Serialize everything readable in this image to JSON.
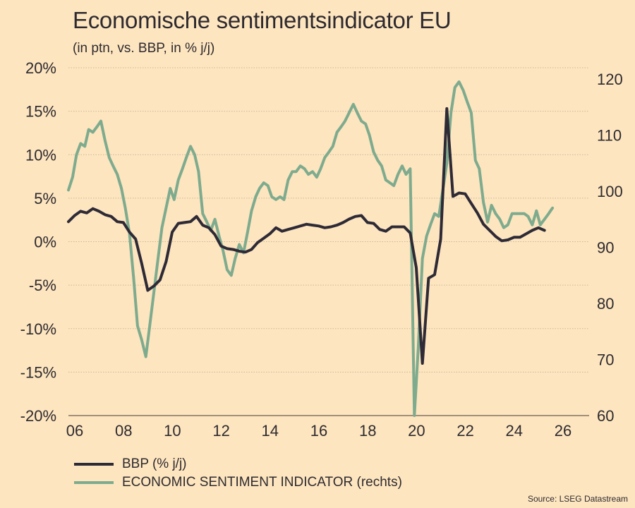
{
  "header": {
    "title": "Economische sentimentsindicator EU",
    "subtitle": "(in ptn, vs. BBP, in % j/j)"
  },
  "legend": {
    "items": [
      {
        "label": "BBP (% j/j)",
        "color": "#2e2a36"
      },
      {
        "label": "ECONOMIC SENTIMENT INDICATOR (rechts)",
        "color": "#7eab8e"
      }
    ]
  },
  "source": "Source: LSEG Datastream",
  "chart_data": {
    "type": "line",
    "title": "Economische sentimentsindicator EU",
    "subtitle": "(in ptn, vs. BBP, in % j/j)",
    "xlabel": "",
    "ylabel_left": "",
    "ylabel_right": "",
    "x_ticks": [
      "06",
      "08",
      "10",
      "12",
      "14",
      "16",
      "18",
      "20",
      "22",
      "24",
      "26"
    ],
    "x_tick_years": [
      2006,
      2008,
      2010,
      2012,
      2014,
      2016,
      2018,
      2020,
      2022,
      2024,
      2026
    ],
    "xlim": [
      2006,
      2027.3
    ],
    "y_left_ticks": [
      "20%",
      "15%",
      "10%",
      "5%",
      "0%",
      "-5%",
      "-10%",
      "-15%",
      "-20%"
    ],
    "y_left_values": [
      20,
      15,
      10,
      5,
      0,
      -5,
      -10,
      -15,
      -20
    ],
    "ylim_left": [
      -20,
      20
    ],
    "y_right_ticks": [
      "120",
      "110",
      "100",
      "90",
      "80",
      "70",
      "60"
    ],
    "y_right_values": [
      120,
      110,
      100,
      90,
      80,
      70,
      60
    ],
    "ylim_right": [
      60,
      120
    ],
    "grid": true,
    "legend_position": "bottom-left",
    "series": [
      {
        "name": "BBP (% j/j)",
        "axis": "left",
        "color": "#2e2a36",
        "x": [
          2006.0,
          2006.25,
          2006.5,
          2006.75,
          2007.0,
          2007.25,
          2007.5,
          2007.75,
          2008.0,
          2008.25,
          2008.5,
          2008.75,
          2009.0,
          2009.25,
          2009.5,
          2009.75,
          2010.0,
          2010.25,
          2010.5,
          2010.75,
          2011.0,
          2011.25,
          2011.5,
          2011.75,
          2012.0,
          2012.25,
          2012.5,
          2012.75,
          2013.0,
          2013.25,
          2013.5,
          2013.75,
          2014.0,
          2014.25,
          2014.5,
          2014.75,
          2015.0,
          2015.25,
          2015.5,
          2015.75,
          2016.0,
          2016.25,
          2016.5,
          2016.75,
          2017.0,
          2017.25,
          2017.5,
          2017.75,
          2018.0,
          2018.25,
          2018.5,
          2018.75,
          2019.0,
          2019.25,
          2019.5,
          2019.75,
          2020.0,
          2020.25,
          2020.5,
          2020.75,
          2021.0,
          2021.25,
          2021.5,
          2021.75,
          2022.0,
          2022.25,
          2022.5,
          2022.75,
          2023.0,
          2023.25,
          2023.5,
          2023.75,
          2024.0,
          2024.25,
          2024.5,
          2024.75,
          2025.0,
          2025.25,
          2025.5
        ],
        "values": [
          2.3,
          3.0,
          3.5,
          3.3,
          3.8,
          3.5,
          3.1,
          2.9,
          2.3,
          2.2,
          1.1,
          0.3,
          -2.5,
          -5.6,
          -5.1,
          -4.4,
          -2.3,
          1.1,
          2.1,
          2.2,
          2.3,
          2.9,
          1.9,
          1.6,
          0.8,
          -0.5,
          -0.8,
          -0.9,
          -1.1,
          -1.2,
          -0.9,
          -0.1,
          0.4,
          0.9,
          1.6,
          1.2,
          1.4,
          1.6,
          1.8,
          2.0,
          1.9,
          1.8,
          1.6,
          1.7,
          1.9,
          2.2,
          2.6,
          2.9,
          3.0,
          2.2,
          2.1,
          1.4,
          1.2,
          1.7,
          1.7,
          1.7,
          1.0,
          -3.0,
          -14.0,
          -4.2,
          -3.8,
          0.3,
          15.3,
          5.2,
          5.6,
          5.5,
          4.4,
          3.3,
          2.0,
          1.3,
          0.6,
          0.1,
          0.2,
          0.5,
          0.5,
          0.9,
          1.3,
          1.6,
          1.3
        ]
      },
      {
        "name": "ECONOMIC SENTIMENT INDICATOR (rechts)",
        "axis": "right",
        "color": "#7eab8e",
        "x": [
          2006.0,
          2006.17,
          2006.33,
          2006.5,
          2006.67,
          2006.83,
          2007.0,
          2007.17,
          2007.33,
          2007.5,
          2007.67,
          2007.83,
          2008.0,
          2008.17,
          2008.33,
          2008.5,
          2008.67,
          2008.83,
          2009.0,
          2009.17,
          2009.33,
          2009.5,
          2009.67,
          2009.83,
          2010.0,
          2010.17,
          2010.33,
          2010.5,
          2010.67,
          2010.83,
          2011.0,
          2011.17,
          2011.33,
          2011.5,
          2011.67,
          2011.83,
          2012.0,
          2012.17,
          2012.33,
          2012.5,
          2012.67,
          2012.83,
          2013.0,
          2013.17,
          2013.33,
          2013.5,
          2013.67,
          2013.83,
          2014.0,
          2014.17,
          2014.33,
          2014.5,
          2014.67,
          2014.83,
          2015.0,
          2015.17,
          2015.33,
          2015.5,
          2015.67,
          2015.83,
          2016.0,
          2016.17,
          2016.33,
          2016.5,
          2016.67,
          2016.83,
          2017.0,
          2017.17,
          2017.33,
          2017.5,
          2017.67,
          2017.83,
          2018.0,
          2018.17,
          2018.33,
          2018.5,
          2018.67,
          2018.83,
          2019.0,
          2019.17,
          2019.33,
          2019.5,
          2019.67,
          2019.83,
          2020.0,
          2020.17,
          2020.33,
          2020.5,
          2020.67,
          2020.83,
          2021.0,
          2021.17,
          2021.33,
          2021.5,
          2021.67,
          2021.83,
          2022.0,
          2022.17,
          2022.33,
          2022.5,
          2022.67,
          2022.83,
          2023.0,
          2023.17,
          2023.33,
          2023.5,
          2023.67,
          2023.83,
          2024.0,
          2024.17,
          2024.33,
          2024.5,
          2024.67,
          2024.83,
          2025.0,
          2025.17,
          2025.33,
          2025.5,
          2025.67,
          2025.83
        ],
        "values": [
          100.2,
          102.5,
          106.5,
          108.5,
          108.0,
          111.0,
          110.5,
          111.5,
          112.5,
          109.0,
          106.0,
          104.5,
          103.0,
          100.5,
          97.0,
          92.5,
          84.5,
          76.0,
          73.5,
          70.5,
          76.0,
          82.0,
          88.0,
          93.5,
          97.0,
          100.5,
          98.5,
          102.0,
          104.0,
          106.0,
          108.0,
          106.5,
          103.5,
          96.0,
          94.5,
          93.0,
          95.0,
          92.0,
          89.5,
          86.0,
          85.0,
          88.0,
          90.5,
          89.0,
          92.5,
          96.5,
          99.0,
          100.5,
          101.5,
          101.0,
          99.0,
          98.5,
          99.0,
          98.5,
          102.0,
          103.5,
          103.5,
          104.5,
          104.0,
          103.0,
          103.5,
          102.5,
          104.0,
          106.0,
          107.0,
          108.0,
          110.5,
          111.5,
          112.5,
          114.0,
          115.5,
          114.0,
          112.5,
          112.0,
          110.0,
          107.0,
          105.5,
          104.5,
          102.0,
          101.5,
          101.0,
          103.0,
          104.5,
          103.0,
          104.0,
          60.0,
          72.0,
          88.0,
          92.0,
          94.0,
          96.0,
          95.5,
          100.0,
          105.0,
          114.0,
          118.5,
          119.5,
          118.0,
          116.0,
          114.0,
          105.5,
          104.0,
          98.0,
          94.5,
          97.5,
          96.0,
          95.0,
          93.5,
          94.0,
          96.0,
          96.0,
          96.0,
          96.0,
          95.5,
          94.0,
          96.5,
          94.0,
          95.0,
          96.0,
          97.0
        ]
      }
    ]
  }
}
